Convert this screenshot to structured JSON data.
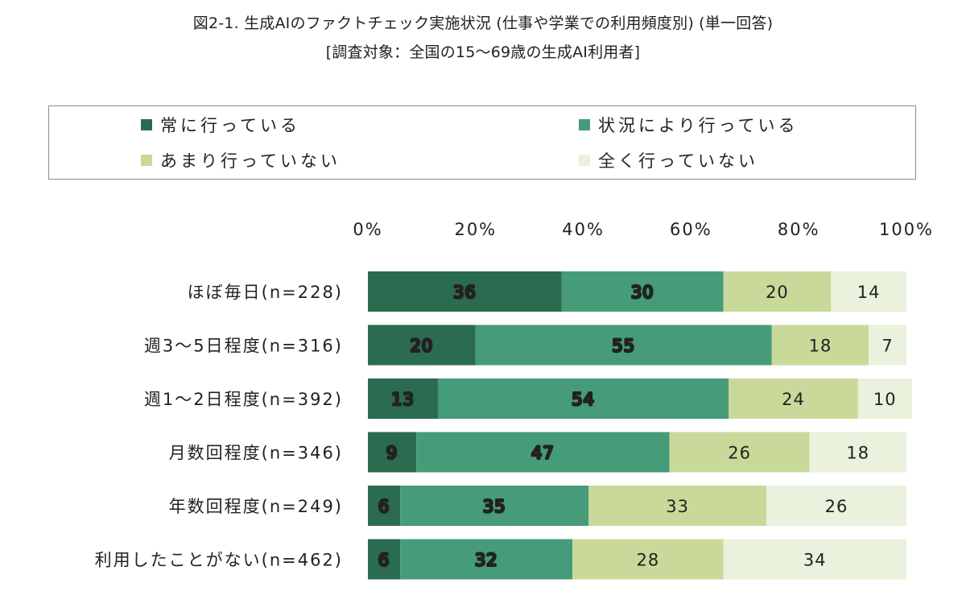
{
  "chart_data": {
    "type": "bar",
    "orientation": "horizontal",
    "stacked": true,
    "title": "図2-1. 生成AIのファクトチェック実施状況 (仕事や学業での利用頻度別) (単一回答)",
    "subtitle": "[調査対象：全国の15〜69歳の生成AI利用者]",
    "xlim": [
      0,
      100
    ],
    "x_tick_labels": [
      "0%",
      "20%",
      "40%",
      "60%",
      "80%",
      "100%"
    ],
    "x_tick_values": [
      0,
      20,
      40,
      60,
      80,
      100
    ],
    "legend_position": "top",
    "categories": [
      "ほぼ毎日(n=228)",
      "週3〜5日程度(n=316)",
      "週1〜2日程度(n=392)",
      "月数回程度(n=346)",
      "年数回程度(n=249)",
      "利用したことがない(n=462)"
    ],
    "series": [
      {
        "name": "常に行っている",
        "color": "#2b6b4f",
        "label_color": "#ffffff",
        "label_halo": "#222222",
        "values": [
          36,
          20,
          13,
          9,
          6,
          6
        ]
      },
      {
        "name": "状況により行っている",
        "color": "#469c78",
        "label_color": "#ffffff",
        "label_halo": "#222222",
        "values": [
          30,
          55,
          54,
          47,
          35,
          32
        ]
      },
      {
        "name": "あまり行っていない",
        "color": "#c9d99a",
        "label_color": "#222222",
        "label_halo": "",
        "values": [
          20,
          18,
          24,
          26,
          33,
          28
        ]
      },
      {
        "name": "全く行っていない",
        "color": "#eaf1dc",
        "label_color": "#222222",
        "label_halo": "",
        "values": [
          14,
          7,
          10,
          18,
          26,
          34
        ]
      }
    ]
  }
}
